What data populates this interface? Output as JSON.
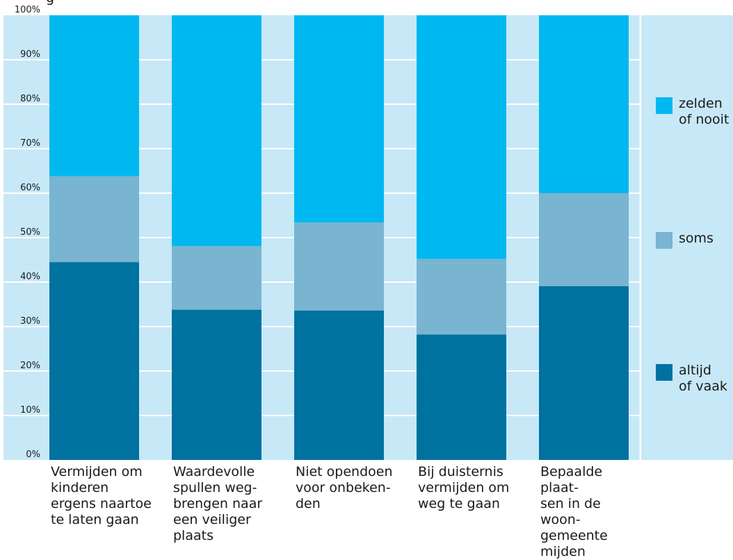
{
  "title_fragment": "g",
  "colors": {
    "plot_bg": "#c7e8f7",
    "legend_bg": "#c7e8f7",
    "grid": "#ffffff",
    "altijd_of_vaak": "#0072a0",
    "soms": "#79b4d0",
    "zelden_of_nooit": "#00b8f0"
  },
  "chart_data": {
    "type": "bar",
    "stacked": true,
    "categories": [
      "Vermijden om\nkinderen\nergens naartoe\nte laten gaan",
      "Waardevolle\nspullen weg-\nbrengen naar\neen veiliger\nplaats",
      "Niet opendoen\nvoor onbeken-\nden",
      "Bij duisternis\nvermijden om\nweg te gaan",
      "Bepaalde plaat-\nsen in de woon-\ngemeente\nmijden"
    ],
    "series": [
      {
        "name": "altijd\nof vaak",
        "color_key": "altijd_of_vaak",
        "values": [
          44.5,
          33.8,
          33.6,
          28.2,
          39.1
        ]
      },
      {
        "name": "soms",
        "color_key": "soms",
        "values": [
          19.3,
          14.3,
          19.8,
          17.0,
          20.9
        ]
      },
      {
        "name": "zelden\nof nooit",
        "color_key": "zelden_of_nooit",
        "values": [
          36.2,
          51.9,
          46.6,
          54.8,
          40.0
        ]
      }
    ],
    "ylim": [
      0,
      100
    ],
    "yticks": [
      "0%",
      "10%",
      "20%",
      "30%",
      "40%",
      "50%",
      "60%",
      "70%",
      "80%",
      "90%",
      "100%"
    ],
    "grid": true,
    "legend_position": "right",
    "legend_order": [
      "zelden\nof nooit",
      "soms",
      "altijd\nof vaak"
    ]
  }
}
